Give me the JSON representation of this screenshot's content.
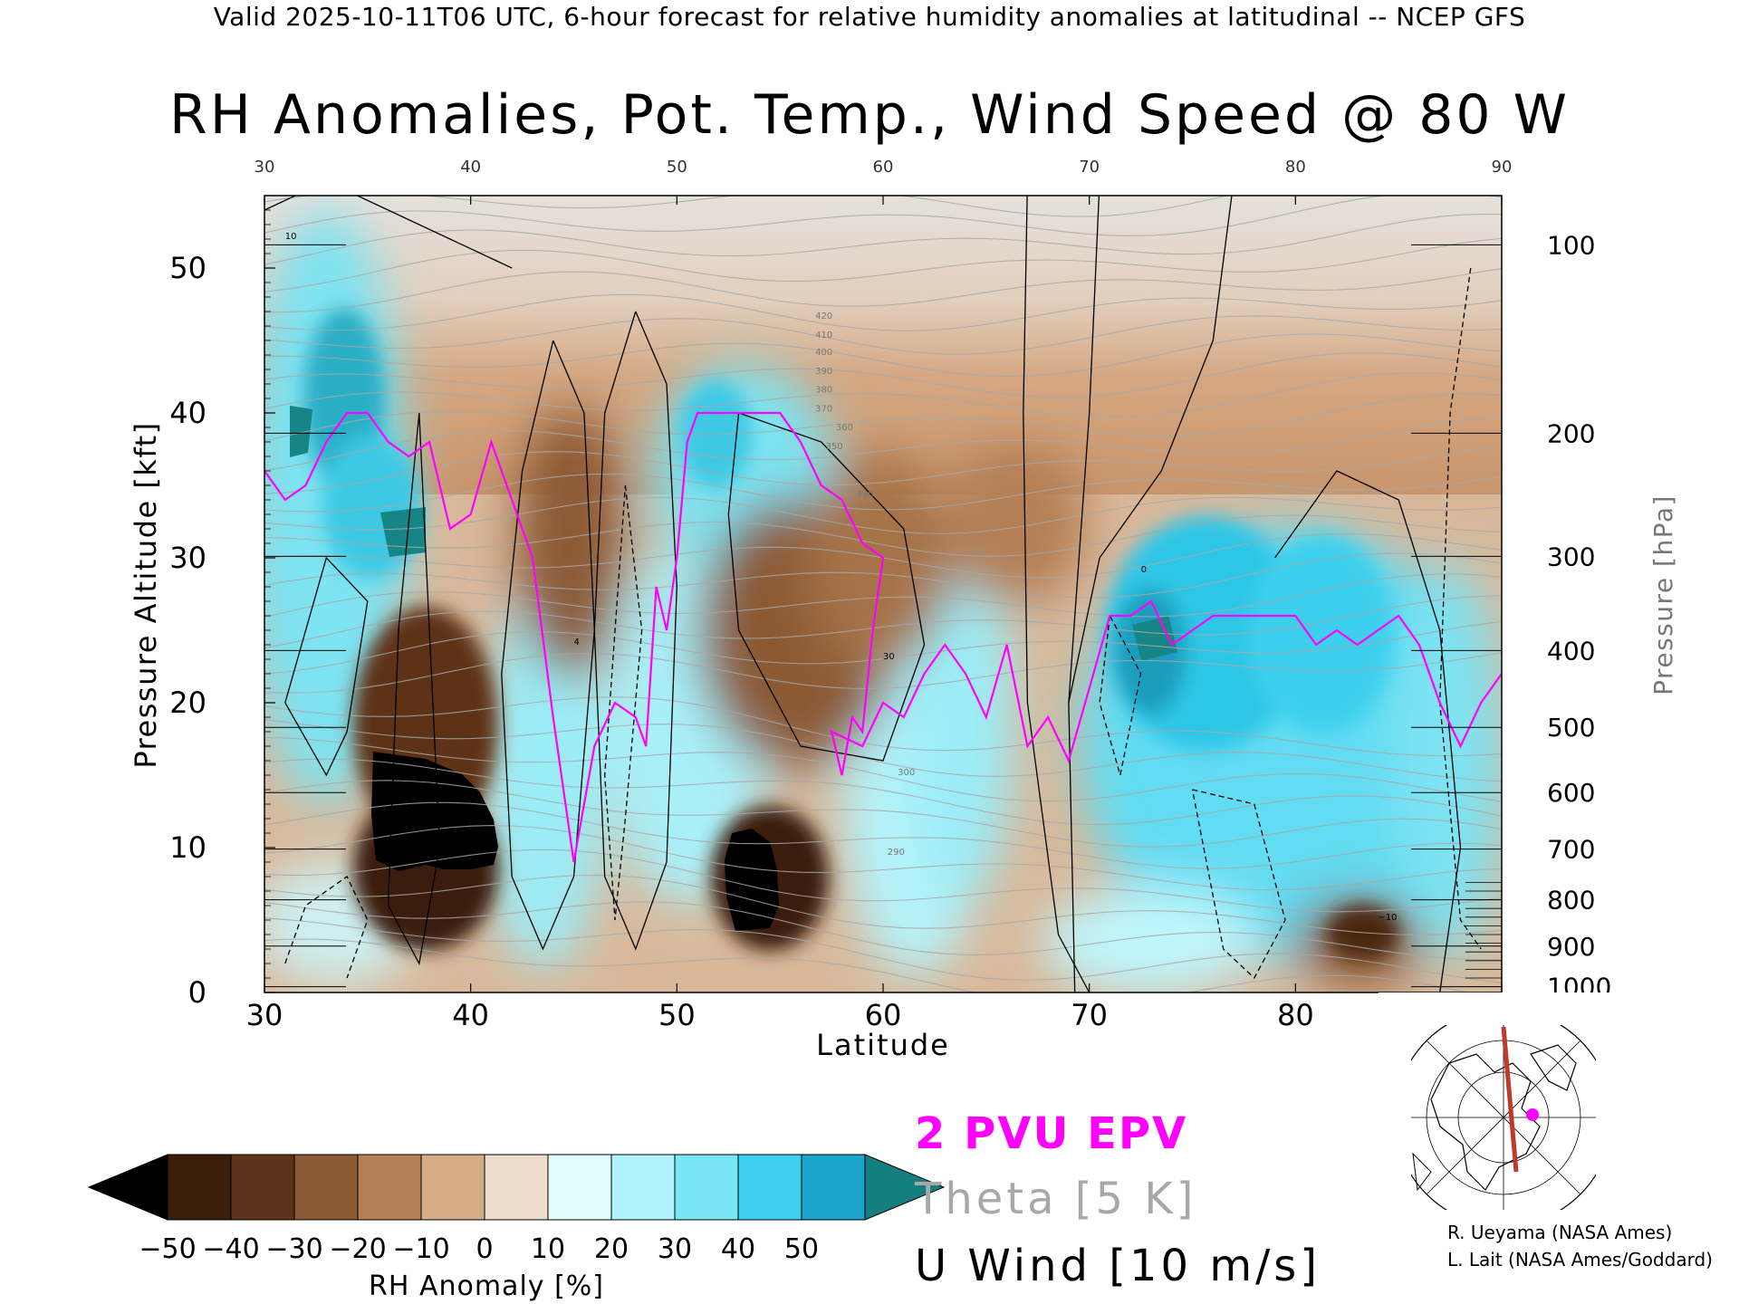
{
  "header": "Valid 2025-10-11T06 UTC, 6-hour forecast for relative humidity anomalies at latitudinal -- NCEP GFS",
  "colors": {
    "epv": "#ff00ff",
    "theta": "#a8a8a8",
    "wind": "#000000",
    "map_track": "#c0392b",
    "map_marker": "#ff00ff"
  },
  "chart_data": {
    "type": "heatmap",
    "title": "RH Anomalies, Pot. Temp., Wind Speed @ 80 W",
    "xlabel": "Latitude",
    "ylabel_left": "Pressure Altitude [kft]",
    "ylabel_right": "Pressure [hPa]",
    "xlim": [
      30,
      90
    ],
    "ylim_kft": [
      0,
      55
    ],
    "x_ticks": [
      30,
      40,
      50,
      60,
      70,
      80,
      90
    ],
    "y_ticks_kft": [
      0,
      10,
      20,
      30,
      40,
      50
    ],
    "pressure_ticks": [
      {
        "hPa": "100",
        "kft": 51.6
      },
      {
        "hPa": "200",
        "kft": 38.6
      },
      {
        "hPa": "300",
        "kft": 30.1
      },
      {
        "hPa": "400",
        "kft": 23.6
      },
      {
        "hPa": "500",
        "kft": 18.3
      },
      {
        "hPa": "600",
        "kft": 13.8
      },
      {
        "hPa": "700",
        "kft": 9.9
      },
      {
        "hPa": "800",
        "kft": 6.4
      },
      {
        "hPa": "900",
        "kft": 3.2
      },
      {
        "hPa": "1000",
        "kft": 0.4
      }
    ],
    "colorbar": {
      "label": "RH Anomaly [%]",
      "ticks": [
        "−50",
        "−40",
        "−30",
        "−20",
        "−10",
        "0",
        "10",
        "20",
        "30",
        "40",
        "50"
      ],
      "bounds": [
        -50,
        50
      ],
      "colors": [
        "#000000",
        "#3a1d0b",
        "#5d3319",
        "#8b5a34",
        "#b47f55",
        "#d6ac87",
        "#eddccc",
        "#e2fbfd",
        "#b0f3fc",
        "#79e6f6",
        "#3ed0ee",
        "#1ba5cc",
        "#157f7f"
      ]
    },
    "rh_anomaly_features": [
      {
        "lat": 37.5,
        "kft": 13,
        "value": -55
      },
      {
        "lat": 53,
        "kft": 9,
        "value": -55
      },
      {
        "lat": 46,
        "kft": 26,
        "value": -30
      },
      {
        "lat": 56,
        "kft": 25,
        "value": -30
      },
      {
        "lat": 67,
        "kft": 34,
        "value": -25
      },
      {
        "lat": 84,
        "kft": 4,
        "value": -40
      },
      {
        "lat": 34,
        "kft": 32,
        "value": 50
      },
      {
        "lat": 52,
        "kft": 36,
        "value": 40
      },
      {
        "lat": 76,
        "kft": 24,
        "value": 40
      },
      {
        "lat": 74,
        "kft": 25,
        "value": 50
      }
    ],
    "theta_contour_labels": [
      "420",
      "410",
      "400",
      "390",
      "380",
      "370",
      "360",
      "350",
      "330",
      "300",
      "290"
    ],
    "wind_contour_labels": [
      "10",
      "0",
      "−10",
      "30",
      "4"
    ],
    "series": [
      {
        "name": "2 PVU EPV",
        "points": [
          [
            30,
            36
          ],
          [
            31,
            34
          ],
          [
            32,
            35
          ],
          [
            33,
            38
          ],
          [
            34,
            40
          ],
          [
            35,
            40
          ],
          [
            36,
            38
          ],
          [
            37,
            37
          ],
          [
            38,
            38
          ],
          [
            39,
            32
          ],
          [
            40,
            33
          ],
          [
            41,
            38
          ],
          [
            42,
            34
          ],
          [
            43,
            30
          ],
          [
            44,
            19
          ],
          [
            45,
            9
          ],
          [
            46,
            17
          ],
          [
            47,
            20
          ],
          [
            48,
            19
          ],
          [
            48.5,
            17
          ],
          [
            49,
            28
          ],
          [
            49.5,
            25
          ],
          [
            50,
            30
          ],
          [
            50.5,
            38
          ],
          [
            51,
            40
          ],
          [
            53,
            40
          ],
          [
            55,
            40
          ],
          [
            56,
            38
          ],
          [
            57,
            35
          ],
          [
            58,
            34
          ],
          [
            59,
            31
          ],
          [
            60,
            30
          ],
          [
            59.5,
            25
          ],
          [
            59,
            18
          ],
          [
            58.5,
            19
          ],
          [
            58,
            15
          ],
          [
            57.5,
            18
          ],
          [
            59,
            17
          ],
          [
            60,
            20
          ],
          [
            61,
            19
          ],
          [
            62,
            22
          ],
          [
            63,
            24
          ],
          [
            64,
            22
          ],
          [
            65,
            19
          ],
          [
            66,
            24
          ],
          [
            67,
            17
          ],
          [
            68,
            19
          ],
          [
            69,
            16
          ],
          [
            70,
            21
          ],
          [
            71,
            26
          ],
          [
            72,
            26
          ],
          [
            73,
            27
          ],
          [
            74,
            24
          ],
          [
            76,
            26
          ],
          [
            78,
            26
          ],
          [
            80,
            26
          ],
          [
            81,
            24
          ],
          [
            82,
            25
          ],
          [
            83,
            24
          ],
          [
            84,
            25
          ],
          [
            85,
            26
          ],
          [
            86,
            24
          ],
          [
            87,
            20
          ],
          [
            88,
            17
          ],
          [
            89,
            20
          ],
          [
            90,
            22
          ]
        ]
      }
    ]
  },
  "legend": {
    "epv": "2 PVU EPV",
    "theta": "Theta [5 K]",
    "wind": "U Wind [10 m/s]"
  },
  "credits": [
    "R. Ueyama (NASA Ames)",
    "L. Lait (NASA Ames/Goddard)"
  ],
  "map": {
    "icon": "northern-hemisphere-locator-map-icon"
  }
}
